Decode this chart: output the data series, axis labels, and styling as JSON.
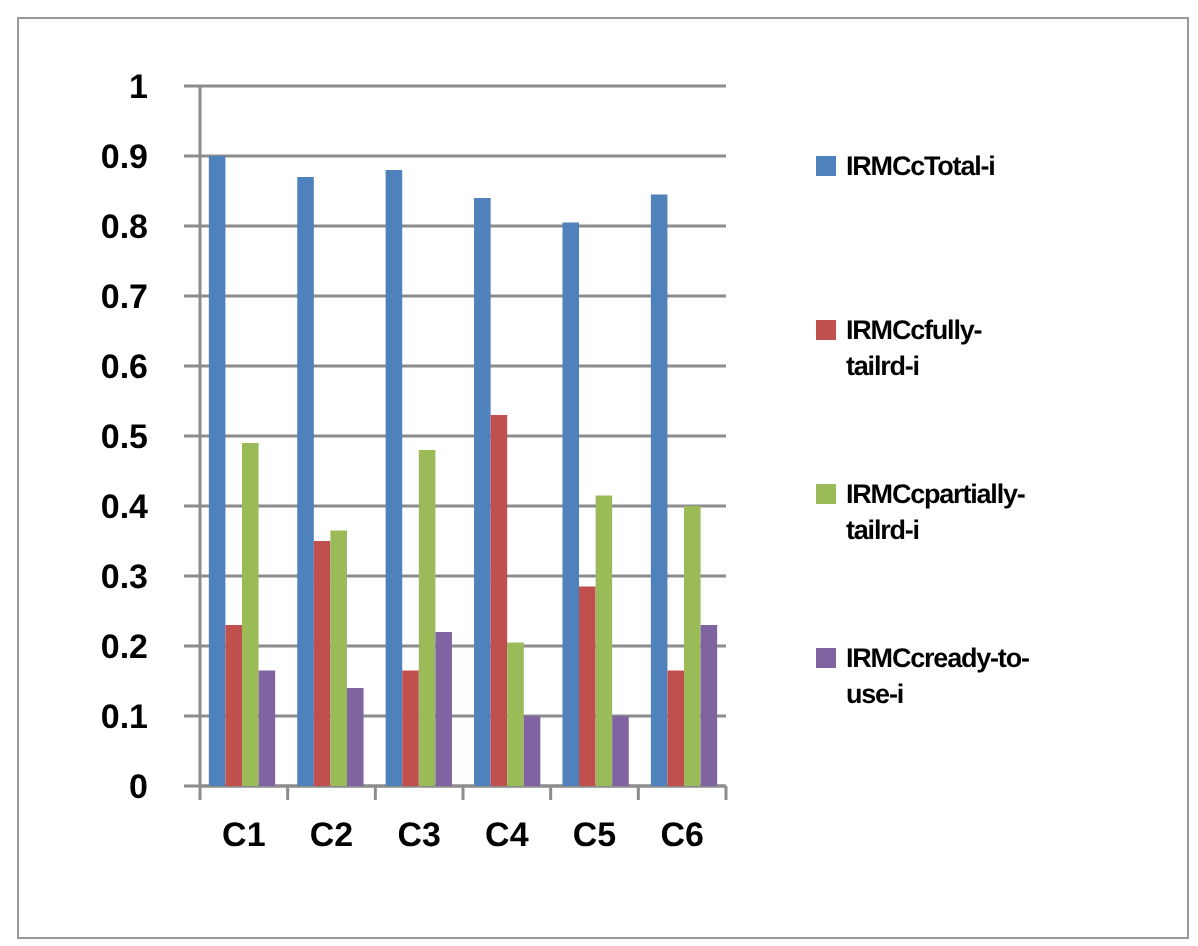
{
  "chart_data": {
    "type": "bar",
    "categories": [
      "C1",
      "C2",
      "C3",
      "C4",
      "C5",
      "C6"
    ],
    "series": [
      {
        "name": "IRMCcTotal-i",
        "color": "#4f81bd",
        "values": [
          0.9,
          0.87,
          0.88,
          0.84,
          0.805,
          0.845
        ]
      },
      {
        "name": "IRMCcfully-tailrd-i",
        "color": "#c0504d",
        "values": [
          0.23,
          0.35,
          0.165,
          0.53,
          0.285,
          0.165
        ]
      },
      {
        "name": "IRMCcpartially-tailrd-i",
        "color": "#9bbb59",
        "values": [
          0.49,
          0.365,
          0.48,
          0.205,
          0.415,
          0.4
        ]
      },
      {
        "name": "IRMCcready-to-use-i",
        "color": "#8064a2",
        "values": [
          0.165,
          0.14,
          0.22,
          0.1,
          0.1,
          0.23
        ]
      }
    ],
    "ylim": [
      0,
      1
    ],
    "yticks": [
      0,
      0.1,
      0.2,
      0.3,
      0.4,
      0.5,
      0.6,
      0.7,
      0.8,
      0.9,
      1
    ],
    "grid": "y",
    "legend": "right"
  }
}
